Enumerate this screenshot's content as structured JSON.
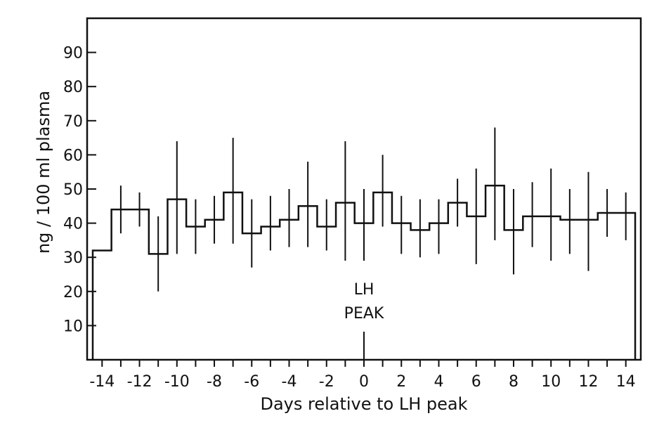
{
  "chart_data": {
    "type": "line",
    "step": true,
    "xlabel": "Days relative to LH peak",
    "ylabel": "ng / 100 ml plasma",
    "xlim": [
      -14.8,
      14.8
    ],
    "ylim": [
      0,
      100
    ],
    "x_ticks": [
      -14,
      -12,
      -10,
      -8,
      -6,
      -4,
      -2,
      0,
      2,
      4,
      6,
      8,
      10,
      12,
      14
    ],
    "x_tick_labels": [
      "-14",
      "-12",
      "-10",
      "-8",
      "-6",
      "-4",
      "-2",
      "0",
      "2",
      "4",
      "6",
      "8",
      "10",
      "12",
      "14"
    ],
    "y_ticks": [
      10,
      20,
      30,
      40,
      50,
      60,
      70,
      80,
      90
    ],
    "y_tick_labels": [
      "10",
      "20",
      "30",
      "40",
      "50",
      "60",
      "70",
      "80",
      "90"
    ],
    "grid": false,
    "series": [
      {
        "x": [
          -14,
          -13,
          -12,
          -11,
          -10,
          -9,
          -8,
          -7,
          -6,
          -5,
          -4,
          -3,
          -2,
          -1,
          0,
          1,
          2,
          3,
          4,
          5,
          6,
          7,
          8,
          9,
          10,
          11,
          12,
          13,
          14
        ],
        "y": [
          32,
          44,
          44,
          31,
          47,
          39,
          41,
          49,
          37,
          39,
          41,
          45,
          39,
          46,
          40,
          49,
          40,
          38,
          40,
          46,
          42,
          51,
          38,
          42,
          42,
          41,
          41,
          43,
          43
        ],
        "err_low": [
          null,
          37,
          39,
          20,
          31,
          31,
          34,
          34,
          27,
          32,
          33,
          33,
          32,
          29,
          29,
          39,
          31,
          30,
          31,
          39,
          28,
          35,
          25,
          33,
          29,
          31,
          26,
          36,
          35
        ],
        "err_high": [
          null,
          51,
          49,
          42,
          64,
          47,
          48,
          65,
          47,
          48,
          50,
          58,
          47,
          64,
          50,
          60,
          48,
          47,
          47,
          53,
          56,
          68,
          50,
          52,
          56,
          50,
          55,
          50,
          49
        ]
      }
    ],
    "annotations": [
      {
        "lines": [
          "LH",
          "PEAK"
        ],
        "x": 0
      }
    ]
  }
}
